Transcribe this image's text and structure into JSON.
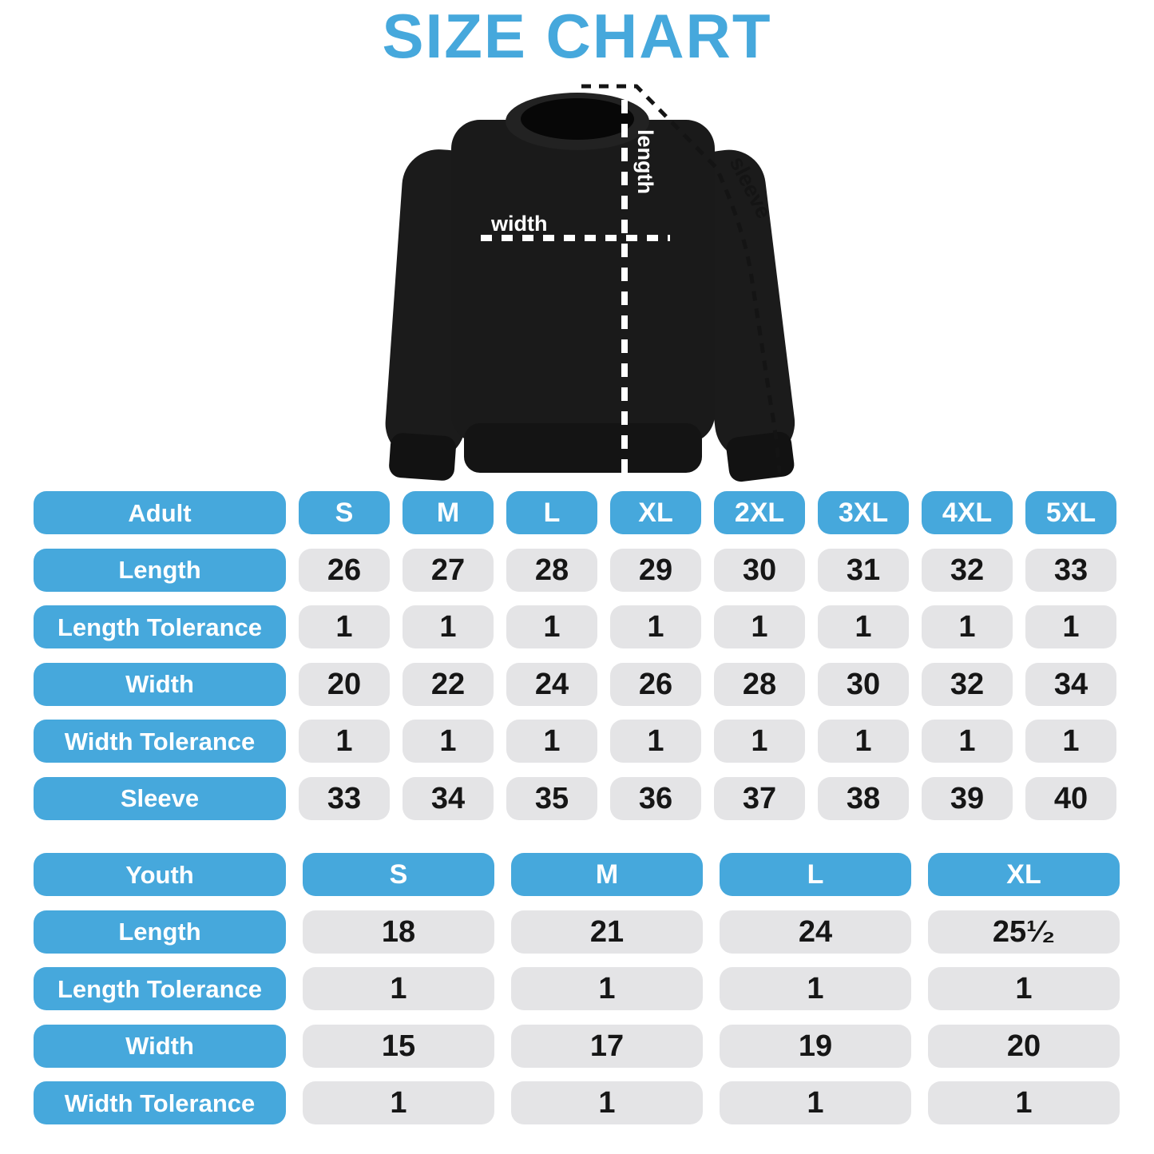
{
  "title": "SIZE CHART",
  "colors": {
    "accent": "#46A8DC",
    "cell_bg": "#E4E4E6",
    "cell_text": "#161616",
    "garment": "#1A1A1A"
  },
  "diagram": {
    "garment": "black crewneck sweatshirt",
    "width_label": "width",
    "length_label": "length",
    "sleeve_label": "sleeve"
  },
  "chart_data": [
    {
      "type": "table",
      "name": "adult-size-table",
      "header": {
        "label": "Adult",
        "sizes": [
          "S",
          "M",
          "L",
          "XL",
          "2XL",
          "3XL",
          "4XL",
          "5XL"
        ]
      },
      "rows": [
        {
          "label": "Length",
          "values": [
            "26",
            "27",
            "28",
            "29",
            "30",
            "31",
            "32",
            "33"
          ]
        },
        {
          "label": "Length Tolerance",
          "values": [
            "1",
            "1",
            "1",
            "1",
            "1",
            "1",
            "1",
            "1"
          ]
        },
        {
          "label": "Width",
          "values": [
            "20",
            "22",
            "24",
            "26",
            "28",
            "30",
            "32",
            "34"
          ]
        },
        {
          "label": "Width Tolerance",
          "values": [
            "1",
            "1",
            "1",
            "1",
            "1",
            "1",
            "1",
            "1"
          ]
        },
        {
          "label": "Sleeve",
          "values": [
            "33",
            "34",
            "35",
            "36",
            "37",
            "38",
            "39",
            "40"
          ]
        }
      ]
    },
    {
      "type": "table",
      "name": "youth-size-table",
      "header": {
        "label": "Youth",
        "sizes": [
          "S",
          "M",
          "L",
          "XL"
        ]
      },
      "rows": [
        {
          "label": "Length",
          "values": [
            "18",
            "21",
            "24",
            "25¹⁄₂"
          ]
        },
        {
          "label": "Length Tolerance",
          "values": [
            "1",
            "1",
            "1",
            "1"
          ]
        },
        {
          "label": "Width",
          "values": [
            "15",
            "17",
            "19",
            "20"
          ]
        },
        {
          "label": "Width Tolerance",
          "values": [
            "1",
            "1",
            "1",
            "1"
          ]
        }
      ]
    }
  ]
}
